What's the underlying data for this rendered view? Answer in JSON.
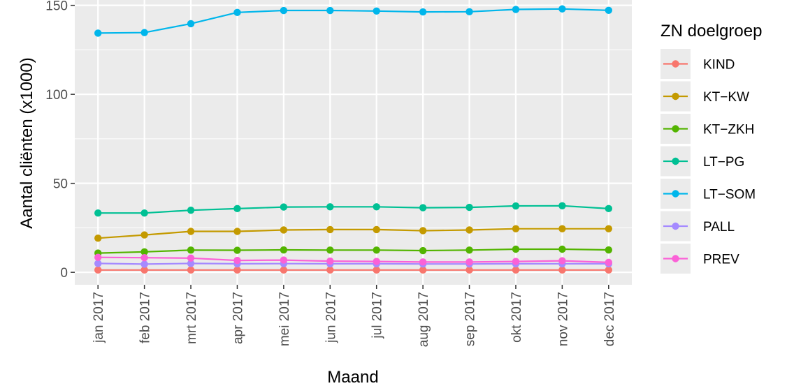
{
  "chart_data": {
    "type": "line",
    "xlabel": "Maand",
    "ylabel": "Aantal cliënten (x1000)",
    "categories": [
      "jan 2017",
      "feb 2017",
      "mrt 2017",
      "apr 2017",
      "mei 2017",
      "jun 2017",
      "jul 2017",
      "aug 2017",
      "sep 2017",
      "okt 2017",
      "nov 2017",
      "dec 2017"
    ],
    "yticks": [
      0,
      50,
      100,
      150
    ],
    "ylim": [
      -7,
      153
    ],
    "grid": true,
    "legend_title": "ZN doelgroep",
    "legend_position": "right",
    "series": [
      {
        "name": "KIND",
        "color": "#F8766D",
        "values": [
          1.3,
          1.3,
          1.3,
          1.3,
          1.3,
          1.3,
          1.3,
          1.3,
          1.3,
          1.3,
          1.3,
          1.3
        ]
      },
      {
        "name": "KT−KW",
        "color": "#C49A00",
        "values": [
          19.2,
          21.0,
          23.0,
          23.0,
          23.8,
          24.0,
          24.0,
          23.4,
          23.8,
          24.5,
          24.5,
          24.5
        ]
      },
      {
        "name": "KT−ZKH",
        "color": "#53B400",
        "values": [
          10.8,
          11.5,
          12.5,
          12.4,
          12.6,
          12.5,
          12.5,
          12.2,
          12.5,
          13.0,
          13.0,
          12.6
        ]
      },
      {
        "name": "LT−PG",
        "color": "#00C094",
        "values": [
          33.3,
          33.3,
          34.9,
          35.8,
          36.7,
          36.8,
          36.8,
          36.3,
          36.5,
          37.3,
          37.4,
          35.8
        ]
      },
      {
        "name": "LT−SOM",
        "color": "#00B6EB",
        "values": [
          134.4,
          134.7,
          139.7,
          146.0,
          147.1,
          147.1,
          146.8,
          146.3,
          146.4,
          147.7,
          148.0,
          147.2
        ]
      },
      {
        "name": "PALL",
        "color": "#A58AFF",
        "values": [
          5.0,
          4.6,
          5.0,
          4.8,
          4.9,
          4.8,
          4.8,
          4.7,
          4.7,
          4.8,
          4.8,
          4.8
        ]
      },
      {
        "name": "PREV",
        "color": "#FB61D7",
        "values": [
          8.4,
          8.2,
          8.0,
          6.7,
          6.9,
          6.3,
          6.1,
          5.8,
          5.8,
          6.1,
          6.5,
          5.6
        ]
      }
    ]
  }
}
